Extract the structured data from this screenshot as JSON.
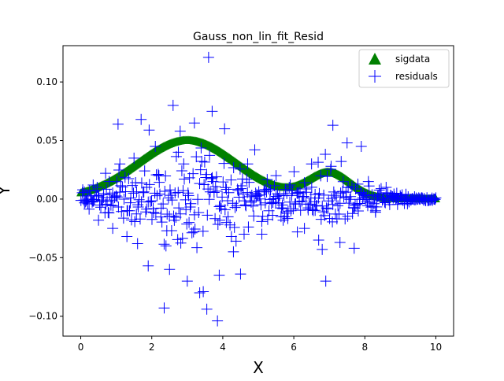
{
  "chart_data": {
    "type": "scatter",
    "title": "Gauss_non_lin_fit_Resid",
    "xlabel": "X",
    "ylabel": "Y",
    "xlim": [
      -0.5,
      10.5
    ],
    "ylim": [
      -0.117,
      0.131
    ],
    "xticks": [
      0,
      2,
      4,
      6,
      8,
      10
    ],
    "xtick_labels": [
      "0",
      "2",
      "4",
      "6",
      "8",
      "10"
    ],
    "yticks": [
      -0.1,
      -0.05,
      0.0,
      0.05,
      0.1
    ],
    "ytick_labels": [
      "−0.10",
      "−0.05",
      "0.00",
      "0.05",
      "0.10"
    ],
    "grid": false,
    "legend_position": "upper-right",
    "series": [
      {
        "name": "sigdata",
        "marker": "triangle",
        "color": "#008000",
        "model": {
          "x_range": [
            0,
            10
          ],
          "n_points": 400,
          "components": [
            {
              "amplitude": 0.05,
              "center": 3.0,
              "sigma": 1.4
            },
            {
              "amplitude": 0.022,
              "center": 7.0,
              "sigma": 0.6
            }
          ]
        }
      },
      {
        "name": "residuals",
        "marker": "plus",
        "color": "#0000ff",
        "x": [
          3.6,
          3.55,
          3.85,
          3.45,
          3.35,
          2.35,
          2.6,
          3.2,
          1.05,
          1.7,
          0.1,
          0.2,
          9.6,
          9.8,
          10.0,
          0.35,
          0.5,
          0.7,
          0.9,
          1.1,
          1.3,
          1.5,
          1.9,
          2.1,
          2.4,
          2.8,
          3.0,
          3.7,
          3.9,
          4.1,
          4.3,
          4.5,
          4.7,
          4.9,
          5.1,
          5.3,
          5.5,
          5.7,
          5.9,
          6.1,
          6.3,
          6.5,
          6.7,
          6.9,
          7.1,
          7.3,
          7.5,
          7.7,
          7.9,
          8.1,
          8.3,
          8.6,
          8.9,
          9.2,
          9.4,
          2.2,
          2.5,
          2.75,
          4.6,
          6.8,
          7.05,
          4.05,
          3.05,
          2.9,
          1.6,
          0.8,
          5.2,
          5.8,
          6.6
        ],
        "y": [
          0.121,
          -0.094,
          -0.104,
          -0.079,
          -0.08,
          -0.093,
          0.08,
          0.065,
          0.064,
          0.068,
          0.006,
          -0.004,
          0.001,
          -0.001,
          0.001,
          0.012,
          -0.018,
          0.022,
          -0.025,
          0.03,
          -0.032,
          0.035,
          -0.057,
          0.045,
          -0.04,
          0.058,
          -0.07,
          0.075,
          -0.065,
          -0.02,
          -0.045,
          -0.064,
          0.03,
          0.042,
          -0.03,
          -0.01,
          0.02,
          -0.018,
          0.012,
          -0.028,
          -0.025,
          0.03,
          -0.035,
          -0.07,
          0.063,
          -0.037,
          0.048,
          -0.042,
          0.045,
          0.015,
          -0.01,
          0.01,
          0.005,
          -0.004,
          0.002,
          0.02,
          -0.06,
          0.04,
          -0.03,
          -0.043,
          0.028,
          0.06,
          -0.02,
          0.03,
          -0.038,
          0.015,
          0.008,
          -0.012,
          0.004
        ],
        "bulk": {
          "x_range": [
            0,
            10
          ],
          "n_points": 420,
          "seed": 7,
          "noise_scale": {
            "components": [
              {
                "amplitude": 0.035,
                "center": 3.0,
                "sigma": 1.5
              },
              {
                "amplitude": 0.02,
                "center": 7.0,
                "sigma": 0.9
              }
            ],
            "floor": 0.0008
          }
        }
      }
    ]
  }
}
